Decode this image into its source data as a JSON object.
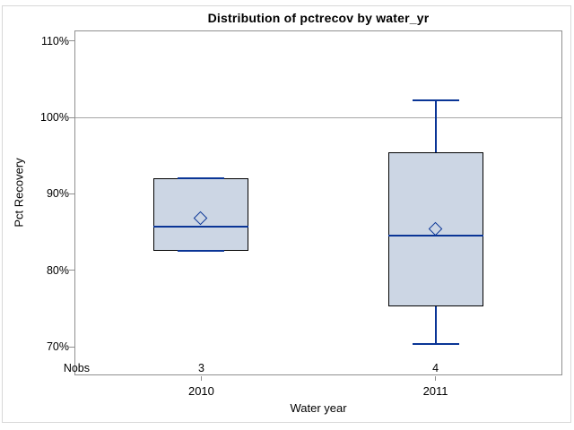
{
  "chart_data": {
    "type": "boxplot",
    "title": "Distribution of pctrecov by water_yr",
    "xlabel": "Water year",
    "ylabel": "Pct Recovery",
    "nobs_row_label": "Nobs",
    "ylim": [
      66.25,
      111.4
    ],
    "y_ticks": [
      {
        "value": 70,
        "label": "70%"
      },
      {
        "value": 80,
        "label": "80%"
      },
      {
        "value": 90,
        "label": "90%"
      },
      {
        "value": 100,
        "label": "100%"
      },
      {
        "value": 110,
        "label": "110%"
      }
    ],
    "reference_line_y": 100,
    "grid": "single horizontal reference line at 100% only",
    "legend_position": "none",
    "categories": [
      "2010",
      "2011"
    ],
    "series": [
      {
        "category": "2010",
        "nobs": "3",
        "min": 82.6,
        "q1": 82.6,
        "median": 85.7,
        "q3": 92,
        "max": 92,
        "mean": 86.8
      },
      {
        "category": "2011",
        "nobs": "4",
        "min": 70.3,
        "q1": 75.3,
        "median": 84.5,
        "q3": 95.5,
        "max": 102.3,
        "mean": 85.4
      }
    ],
    "marker": "hollow-diamond-mean",
    "colors": {
      "box_fill": "#ccd6e4",
      "box_border": "#000000",
      "whisker_median_mean": "#0a3596",
      "axis_frame": "#8f8f8f",
      "reference_line": "#a6a6a6",
      "outer_border": "#d8d8d8",
      "text": "#000000"
    }
  }
}
